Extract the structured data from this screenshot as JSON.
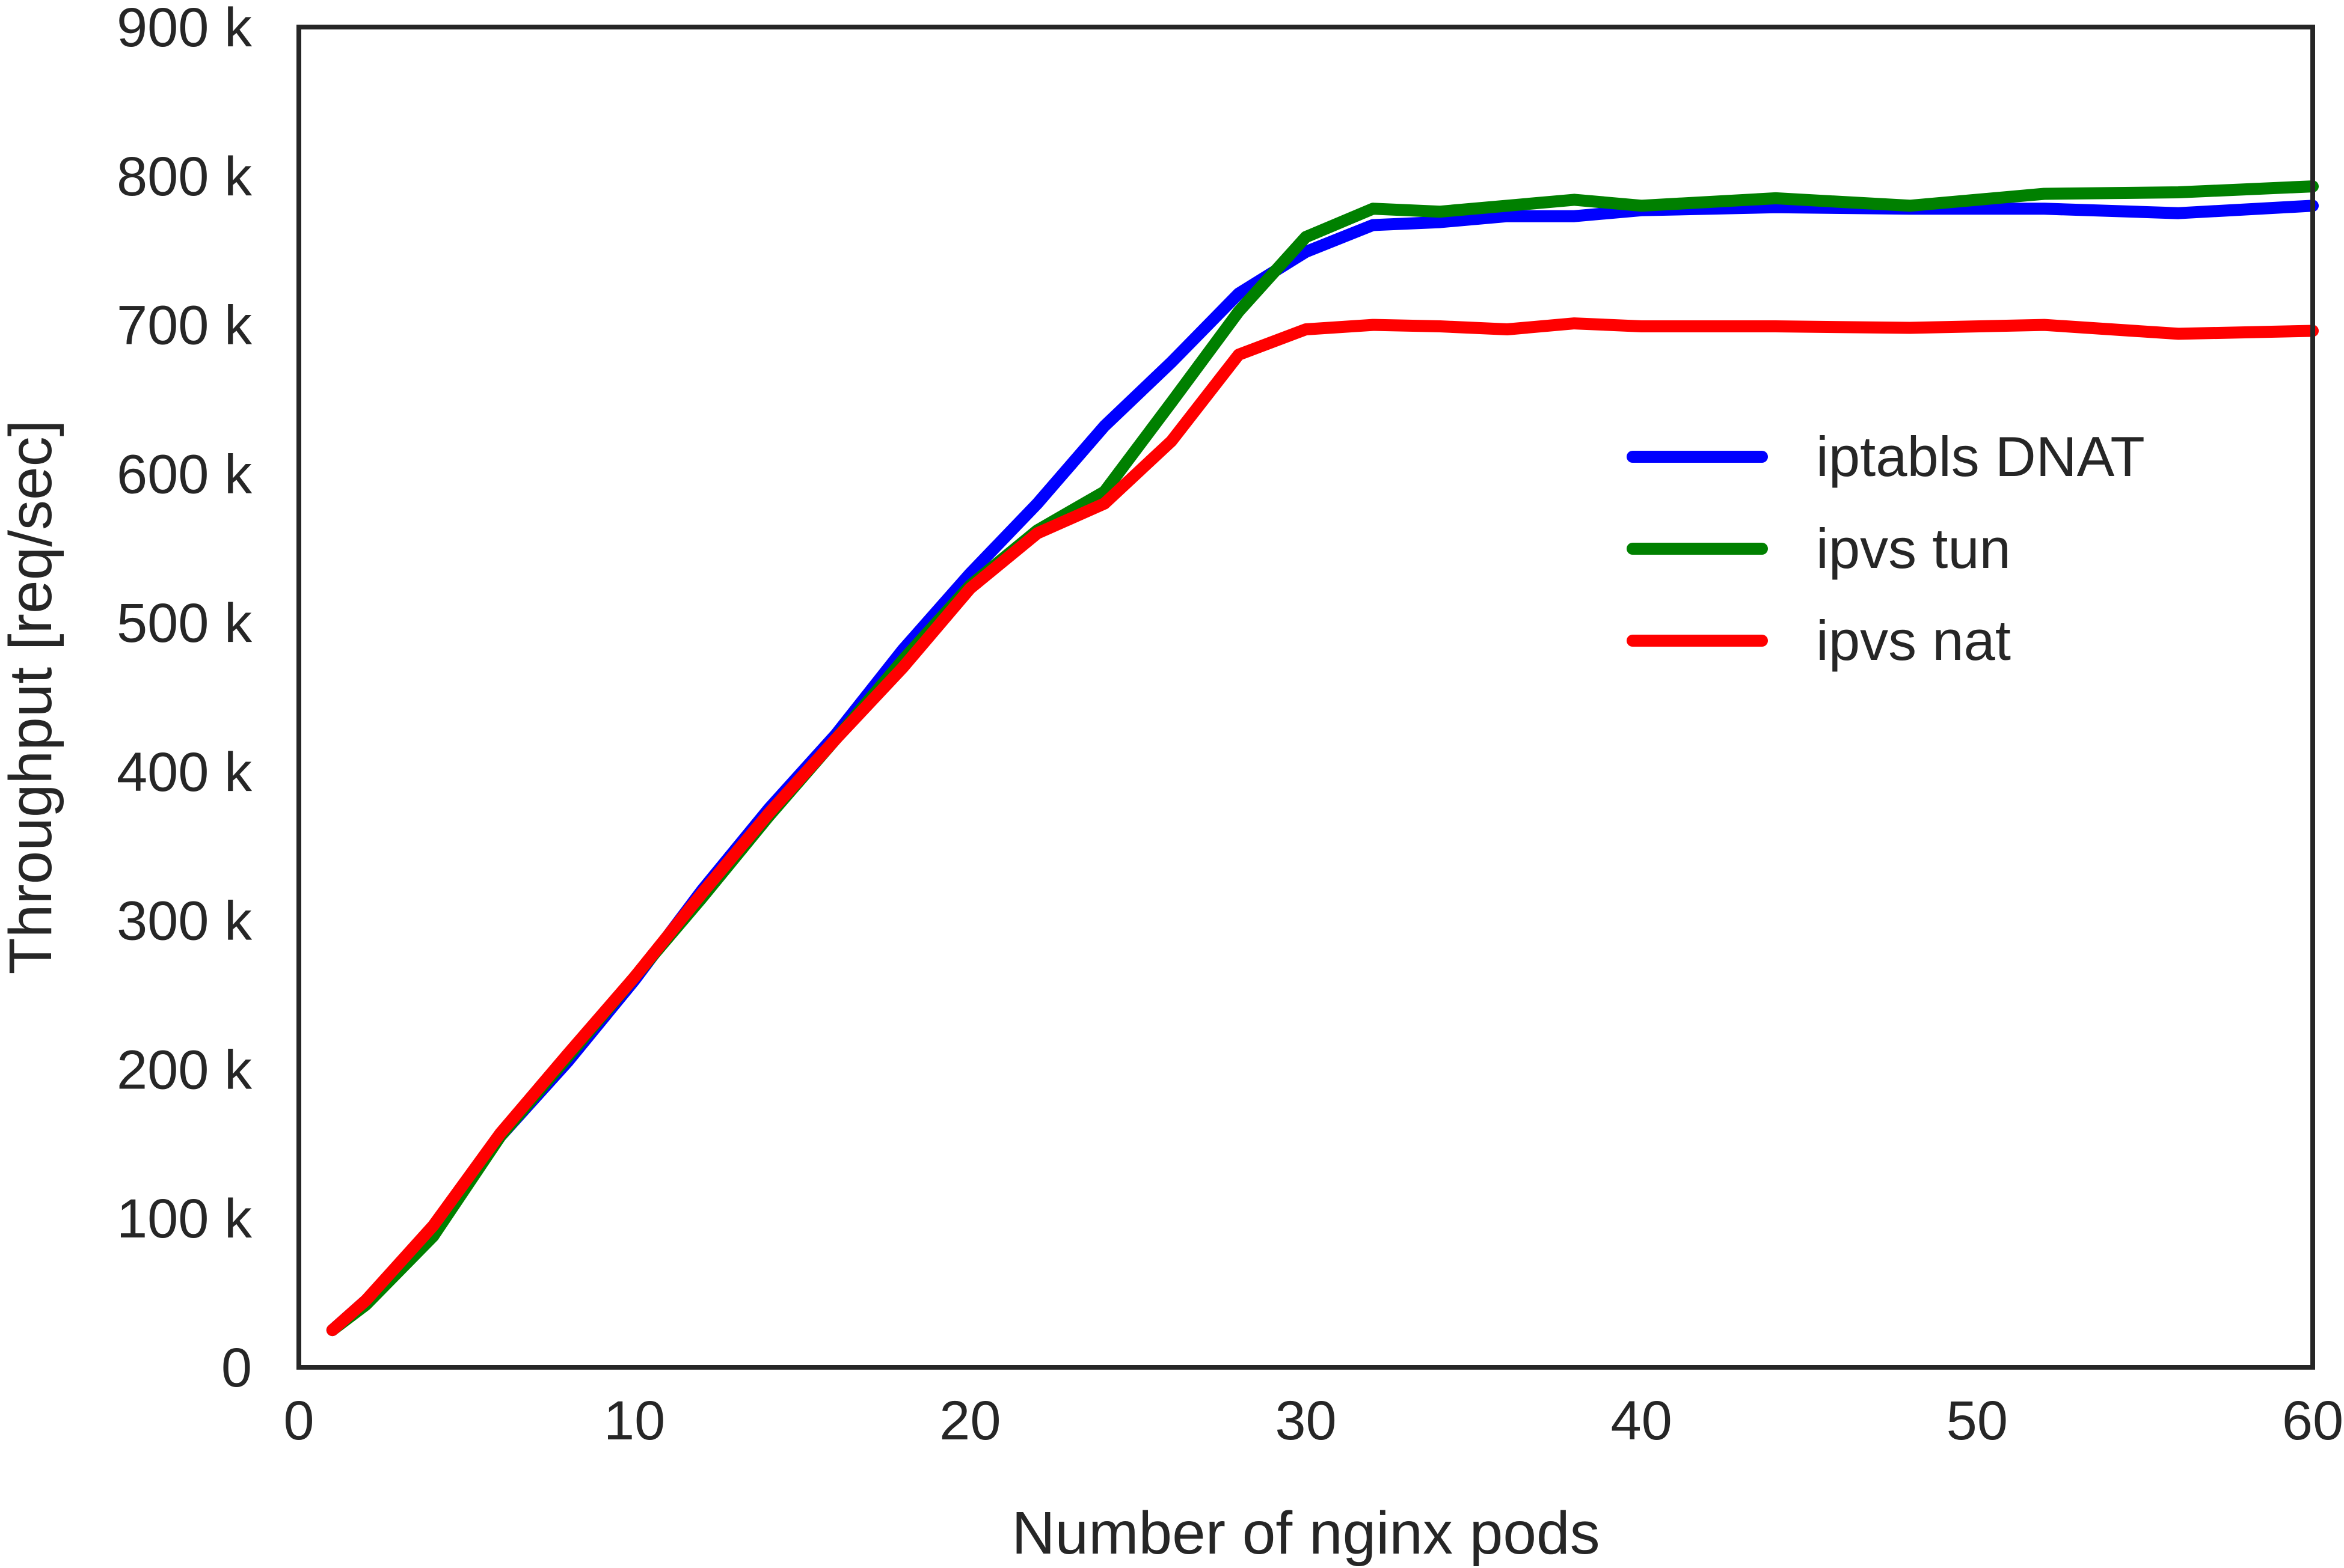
{
  "chart_data": {
    "type": "line",
    "title": "",
    "xlabel": "Number of nginx pods",
    "ylabel": "Throughput [req/sec]",
    "xlim": [
      0,
      60
    ],
    "ylim": [
      0,
      900000
    ],
    "xticks": [
      0,
      10,
      20,
      30,
      40,
      50,
      60
    ],
    "xtick_labels": [
      "0",
      "10",
      "20",
      "30",
      "40",
      "50",
      "60"
    ],
    "yticks": [
      0,
      100000,
      200000,
      300000,
      400000,
      500000,
      600000,
      700000,
      800000,
      900000
    ],
    "ytick_labels": [
      "0",
      "100 k",
      "200 k",
      "300 k",
      "400 k",
      "500 k",
      "600 k",
      "700 k",
      "800 k",
      "900 k"
    ],
    "grid": false,
    "legend_position": "center-right",
    "x": [
      1,
      2,
      4,
      6,
      8,
      10,
      12,
      14,
      16,
      18,
      20,
      22,
      24,
      26,
      28,
      30,
      32,
      34,
      36,
      38,
      40,
      44,
      48,
      52,
      56,
      60
    ],
    "series": [
      {
        "name": "iptabls DNAT",
        "color": "#0000ff",
        "values": [
          25000,
          45000,
          90000,
          155000,
          205000,
          260000,
          320000,
          375000,
          425000,
          482000,
          533000,
          580000,
          632000,
          675000,
          721000,
          749000,
          767000,
          769000,
          773000,
          773000,
          777000,
          779000,
          778000,
          778000,
          775000,
          780000
        ]
      },
      {
        "name": "ipvs tun",
        "color": "#008000",
        "values": [
          25000,
          42000,
          88000,
          155000,
          208000,
          262000,
          315000,
          370000,
          422000,
          475000,
          525000,
          562000,
          588000,
          648000,
          709000,
          759000,
          778000,
          776000,
          780000,
          784000,
          780000,
          785000,
          780000,
          788000,
          789000,
          793000
        ]
      },
      {
        "name": "ipvs nat",
        "color": "#ff0000",
        "values": [
          25000,
          45000,
          95000,
          157000,
          210000,
          262000,
          318000,
          372000,
          422000,
          470000,
          523000,
          560000,
          580000,
          622000,
          680000,
          697000,
          700000,
          699000,
          697000,
          701000,
          699000,
          699000,
          698000,
          700000,
          694000,
          696000
        ]
      }
    ]
  }
}
